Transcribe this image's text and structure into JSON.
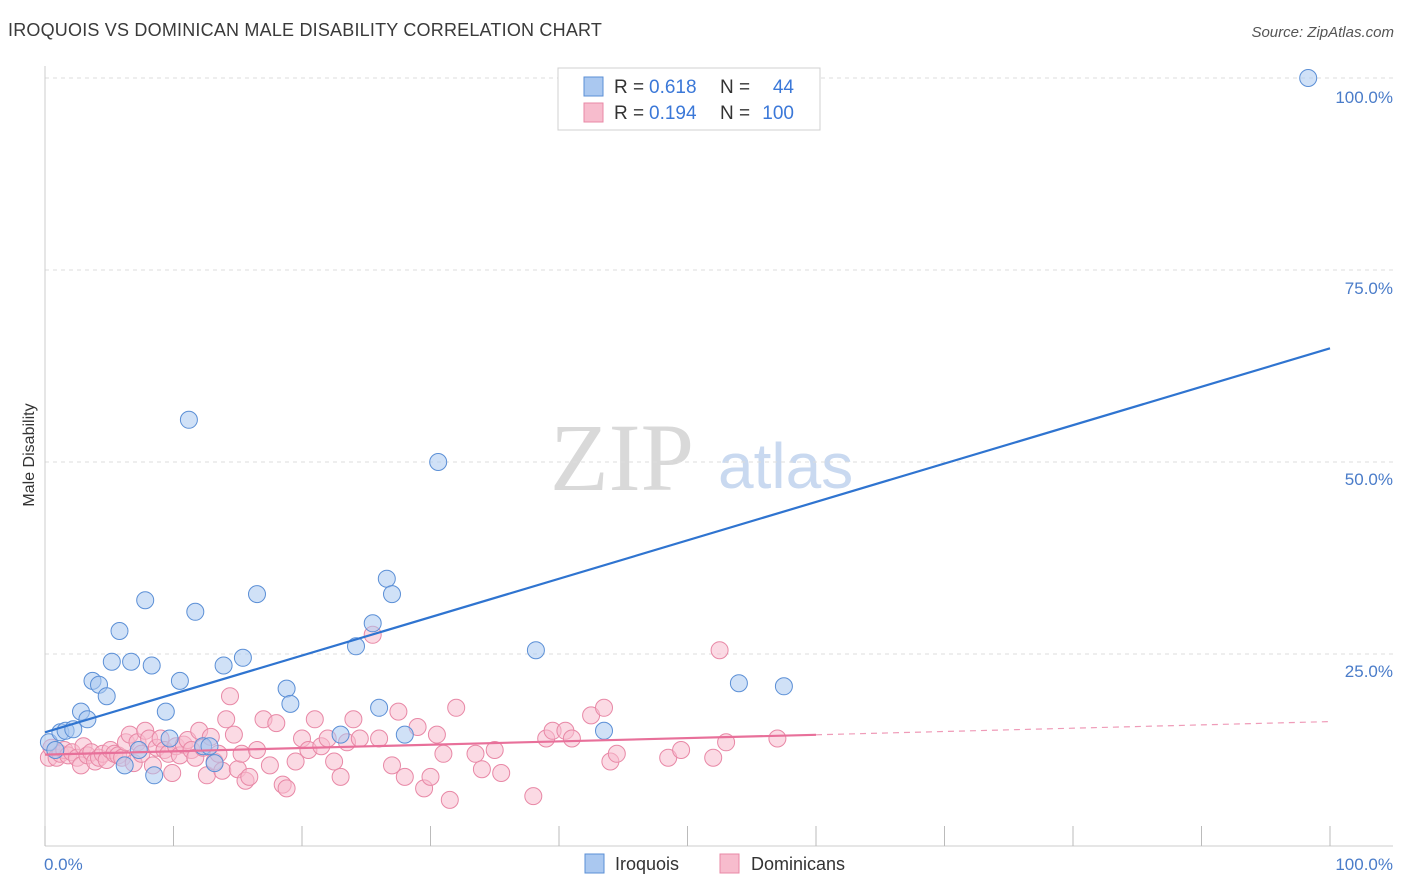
{
  "header": {
    "title": "IROQUOIS VS DOMINICAN MALE DISABILITY CORRELATION CHART",
    "source": "Source: ZipAtlas.com"
  },
  "watermark": {
    "zip": "ZIP",
    "atlas": "atlas"
  },
  "colors": {
    "iroquois_fill": "#aac8f0",
    "iroquois_stroke": "#5b8fd6",
    "iroquois_line": "#2f74d0",
    "dominican_fill": "#f7bccd",
    "dominican_stroke": "#e888a6",
    "dominican_line": "#e8709a",
    "tick_label": "#4a7cc9",
    "grid": "#dddddd"
  },
  "legend": {
    "rows": [
      {
        "r_label": "R =",
        "r_value": "0.618",
        "n_label": "N =",
        "n_value": "44"
      },
      {
        "r_label": "R =",
        "r_value": "0.194",
        "n_label": "N =",
        "n_value": "100"
      }
    ]
  },
  "bottom_legend": {
    "series1": "Iroquois",
    "series2": "Dominicans"
  },
  "chart_data": {
    "type": "scatter",
    "title": "IROQUOIS VS DOMINICAN MALE DISABILITY CORRELATION CHART",
    "xlabel": "",
    "ylabel": "Male Disability",
    "xlim": [
      0,
      100
    ],
    "ylim": [
      0,
      105
    ],
    "x_tick_labels": [
      "0.0%",
      "100.0%"
    ],
    "y_ticks": [
      25,
      50,
      75,
      100
    ],
    "y_tick_labels": [
      "25.0%",
      "50.0%",
      "75.0%",
      "100.0%"
    ],
    "series": [
      {
        "name": "Iroquois",
        "r": 0.618,
        "n": 44,
        "trend": {
          "x0": 0,
          "y0": 14.8,
          "x1": 100,
          "y1": 64.8,
          "dashed_from": null
        },
        "points": [
          [
            0.3,
            13.5
          ],
          [
            0.8,
            12.5
          ],
          [
            1.2,
            14.8
          ],
          [
            1.6,
            15.0
          ],
          [
            2.2,
            15.2
          ],
          [
            2.8,
            17.5
          ],
          [
            3.3,
            16.5
          ],
          [
            3.7,
            21.5
          ],
          [
            4.2,
            21.0
          ],
          [
            4.8,
            19.5
          ],
          [
            5.2,
            24.0
          ],
          [
            5.8,
            28.0
          ],
          [
            6.2,
            10.5
          ],
          [
            6.7,
            24.0
          ],
          [
            7.3,
            12.5
          ],
          [
            7.8,
            32.0
          ],
          [
            8.3,
            23.5
          ],
          [
            8.5,
            9.2
          ],
          [
            9.4,
            17.5
          ],
          [
            9.7,
            14.0
          ],
          [
            10.5,
            21.5
          ],
          [
            11.2,
            55.5
          ],
          [
            11.7,
            30.5
          ],
          [
            12.3,
            13.0
          ],
          [
            12.8,
            13.0
          ],
          [
            13.2,
            10.8
          ],
          [
            13.9,
            23.5
          ],
          [
            15.4,
            24.5
          ],
          [
            16.5,
            32.8
          ],
          [
            18.8,
            20.5
          ],
          [
            19.1,
            18.5
          ],
          [
            23.0,
            14.5
          ],
          [
            24.2,
            26.0
          ],
          [
            25.5,
            29.0
          ],
          [
            26.0,
            18.0
          ],
          [
            26.6,
            34.8
          ],
          [
            27.0,
            32.8
          ],
          [
            28.0,
            14.5
          ],
          [
            30.6,
            50.0
          ],
          [
            38.2,
            25.5
          ],
          [
            43.5,
            15.0
          ],
          [
            54.0,
            21.2
          ],
          [
            57.5,
            20.8
          ],
          [
            98.3,
            100.0
          ]
        ]
      },
      {
        "name": "Dominicans",
        "r": 0.194,
        "n": 100,
        "trend": {
          "x0": 0,
          "y0": 11.9,
          "x1": 100,
          "y1": 16.2,
          "dashed_from": 60
        },
        "points": [
          [
            0.3,
            11.5
          ],
          [
            0.5,
            12.8
          ],
          [
            0.9,
            11.5
          ],
          [
            1.2,
            12.0
          ],
          [
            1.5,
            12.5
          ],
          [
            1.8,
            11.8
          ],
          [
            2.1,
            12.2
          ],
          [
            2.5,
            11.5
          ],
          [
            2.8,
            10.5
          ],
          [
            3.0,
            13.0
          ],
          [
            3.3,
            11.8
          ],
          [
            3.6,
            12.2
          ],
          [
            3.9,
            11.0
          ],
          [
            4.2,
            11.5
          ],
          [
            4.5,
            12.0
          ],
          [
            4.8,
            11.2
          ],
          [
            5.1,
            12.5
          ],
          [
            5.4,
            12.0
          ],
          [
            5.7,
            11.8
          ],
          [
            6.0,
            11.5
          ],
          [
            6.3,
            13.5
          ],
          [
            6.6,
            14.5
          ],
          [
            6.9,
            10.8
          ],
          [
            7.2,
            13.5
          ],
          [
            7.5,
            12.0
          ],
          [
            7.8,
            15.0
          ],
          [
            8.1,
            14.0
          ],
          [
            8.4,
            10.5
          ],
          [
            8.7,
            12.8
          ],
          [
            9.0,
            14.0
          ],
          [
            9.3,
            12.5
          ],
          [
            9.6,
            12.0
          ],
          [
            9.9,
            9.5
          ],
          [
            10.2,
            13.0
          ],
          [
            10.5,
            11.8
          ],
          [
            10.8,
            13.2
          ],
          [
            11.1,
            13.8
          ],
          [
            11.4,
            12.5
          ],
          [
            11.7,
            11.5
          ],
          [
            12.0,
            15.0
          ],
          [
            12.3,
            12.8
          ],
          [
            12.6,
            9.2
          ],
          [
            12.9,
            14.2
          ],
          [
            13.2,
            11.0
          ],
          [
            13.5,
            12.0
          ],
          [
            13.8,
            9.8
          ],
          [
            14.1,
            16.5
          ],
          [
            14.4,
            19.5
          ],
          [
            14.7,
            14.5
          ],
          [
            15.0,
            10.0
          ],
          [
            15.3,
            12.0
          ],
          [
            15.6,
            8.5
          ],
          [
            15.9,
            9.0
          ],
          [
            16.5,
            12.5
          ],
          [
            17.0,
            16.5
          ],
          [
            17.5,
            10.5
          ],
          [
            18.0,
            16.0
          ],
          [
            18.5,
            8.0
          ],
          [
            18.8,
            7.5
          ],
          [
            19.5,
            11.0
          ],
          [
            20.0,
            14.0
          ],
          [
            20.5,
            12.5
          ],
          [
            21.0,
            16.5
          ],
          [
            21.5,
            13.0
          ],
          [
            22.0,
            14.0
          ],
          [
            22.5,
            11.0
          ],
          [
            23.0,
            9.0
          ],
          [
            23.5,
            13.5
          ],
          [
            24.0,
            16.5
          ],
          [
            24.5,
            14.0
          ],
          [
            25.5,
            27.5
          ],
          [
            26.0,
            14.0
          ],
          [
            27.0,
            10.5
          ],
          [
            27.5,
            17.5
          ],
          [
            28.0,
            9.0
          ],
          [
            29.0,
            15.5
          ],
          [
            29.5,
            7.5
          ],
          [
            30.0,
            9.0
          ],
          [
            30.5,
            14.5
          ],
          [
            31.0,
            12.0
          ],
          [
            31.5,
            6.0
          ],
          [
            32.0,
            18.0
          ],
          [
            33.5,
            12.0
          ],
          [
            34.0,
            10.0
          ],
          [
            35.0,
            12.5
          ],
          [
            35.5,
            9.5
          ],
          [
            38.0,
            6.5
          ],
          [
            39.0,
            14.0
          ],
          [
            39.5,
            15.0
          ],
          [
            40.5,
            15.0
          ],
          [
            41.0,
            14.0
          ],
          [
            42.5,
            17.0
          ],
          [
            43.5,
            18.0
          ],
          [
            44.0,
            11.0
          ],
          [
            44.5,
            12.0
          ],
          [
            48.5,
            11.5
          ],
          [
            49.5,
            12.5
          ],
          [
            52.0,
            11.5
          ],
          [
            52.5,
            25.5
          ],
          [
            53.0,
            13.5
          ],
          [
            57.0,
            14.0
          ]
        ]
      }
    ]
  }
}
